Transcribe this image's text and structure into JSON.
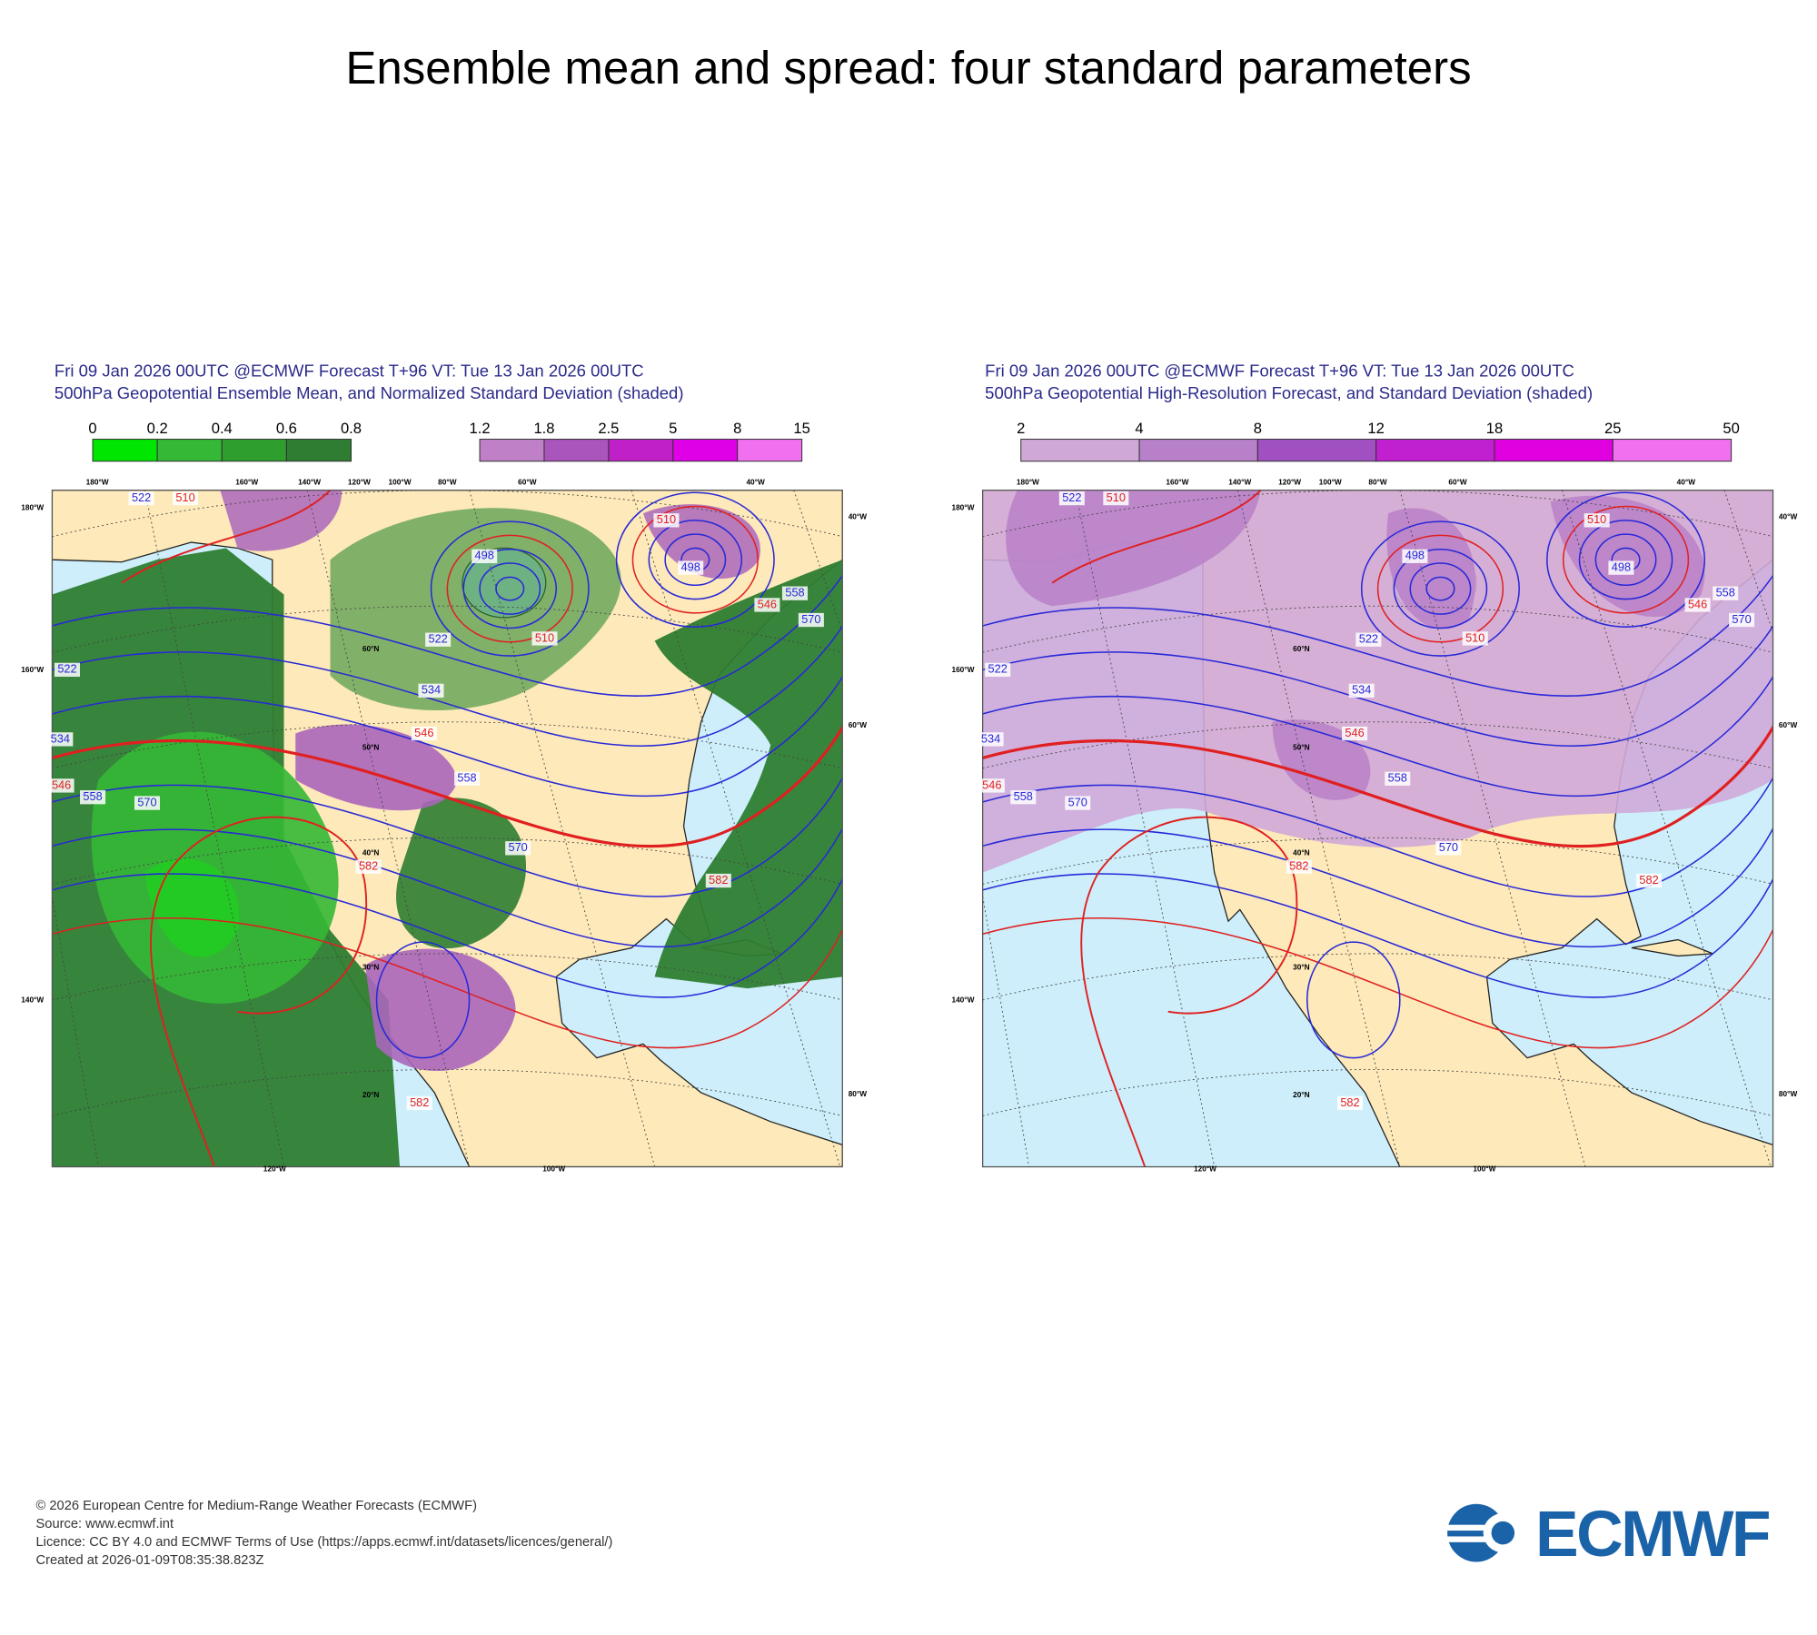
{
  "title": "Ensemble mean and spread: four standard parameters",
  "panels": [
    {
      "header": [
        "Fri 09 Jan 2026 00UTC @ECMWF Forecast T+96 VT: Tue 13 Jan 2026 00UTC",
        "500hPa Geopotential Ensemble Mean, and Normalized Standard Deviation (shaded)"
      ],
      "colorbars": [
        {
          "labels": [
            0,
            0.2,
            0.4,
            0.6,
            0.8
          ],
          "colors": [
            "#00e600",
            "#35b835",
            "#2e9e2e",
            "#2e7d32"
          ]
        },
        {
          "labels": [
            1.2,
            1.8,
            2.5,
            5,
            8,
            15
          ],
          "colors": [
            "#c080c8",
            "#aa55bb",
            "#c020c8",
            "#e000e8",
            "#f070f0"
          ]
        }
      ],
      "contour_labels": [
        510,
        510,
        510,
        522,
        522,
        522,
        534,
        534,
        546,
        546,
        546,
        558,
        558,
        558,
        570,
        570,
        570,
        582,
        582,
        582,
        498,
        498
      ]
    },
    {
      "header": [
        "Fri 09 Jan 2026 00UTC @ECMWF Forecast T+96 VT: Tue 13 Jan 2026 00UTC",
        "500hPa Geopotential High-Resolution Forecast, and Standard Deviation (shaded)"
      ],
      "colorbars": [
        {
          "labels": [
            2,
            4,
            8,
            12,
            18,
            25,
            50
          ],
          "colors": [
            "#d0a8d8",
            "#b880c8",
            "#a050c0",
            "#c020d0",
            "#e000e0",
            "#f070f0"
          ]
        }
      ],
      "contour_labels": [
        510,
        510,
        510,
        522,
        522,
        522,
        534,
        534,
        546,
        546,
        546,
        558,
        558,
        558,
        570,
        570,
        570,
        582,
        582,
        582,
        498,
        498
      ]
    }
  ],
  "graticule_labels": [
    "180°W",
    "160°W",
    "140°W",
    "120°W",
    "100°W",
    "80°W",
    "60°W",
    "40°W",
    "180°W",
    "160°W",
    "140°W",
    "40°W",
    "60°W",
    "80°W",
    "120°W",
    "100°W",
    "60°N",
    "50°N",
    "40°N",
    "30°N",
    "20°N"
  ],
  "footer": [
    "© 2026 European Centre for Medium-Range Weather Forecasts (ECMWF)",
    "Source: www.ecmwf.int",
    "Licence: CC BY 4.0 and ECMWF Terms of Use (https://apps.ecmwf.int/datasets/licences/general/)",
    "Created at 2026-01-09T08:35:38.823Z"
  ],
  "logo": "ECMWF"
}
